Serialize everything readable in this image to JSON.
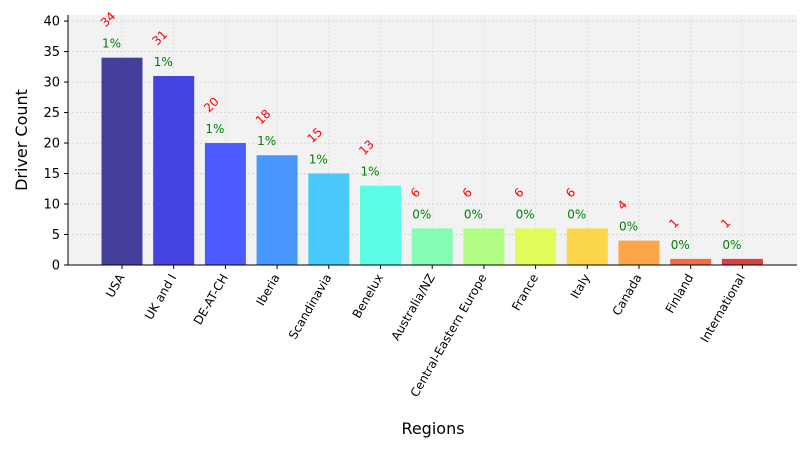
{
  "chart_data": {
    "type": "bar",
    "title": "",
    "xlabel": "Regions",
    "ylabel": "Driver Count",
    "ylim": [
      0,
      41
    ],
    "yticks": [
      0,
      5,
      10,
      15,
      20,
      25,
      30,
      35,
      40
    ],
    "grid": true,
    "categories": [
      "USA",
      "UK and I",
      "DE-AT-CH",
      "Iberia",
      "Scandinavia",
      "Benelux",
      "Australia/NZ",
      "Central-Eastern Europe",
      "France",
      "Italy",
      "Canada",
      "Finland",
      "International"
    ],
    "values": [
      34,
      31,
      20,
      18,
      15,
      13,
      6,
      6,
      6,
      6,
      4,
      1,
      1
    ],
    "percent_labels": [
      "1%",
      "1%",
      "1%",
      "1%",
      "1%",
      "1%",
      "0%",
      "0%",
      "0%",
      "0%",
      "0%",
      "0%",
      "0%"
    ],
    "colors": [
      "#453f9c",
      "#4444e0",
      "#4b5bff",
      "#4797ff",
      "#49c9fb",
      "#5cfce5",
      "#85fbb3",
      "#b2fd84",
      "#e2fb5a",
      "#fcd64a",
      "#fca54a",
      "#f56b42",
      "#d94040"
    ],
    "count_label_color": "#ff0000",
    "percent_label_color": "#008000"
  }
}
